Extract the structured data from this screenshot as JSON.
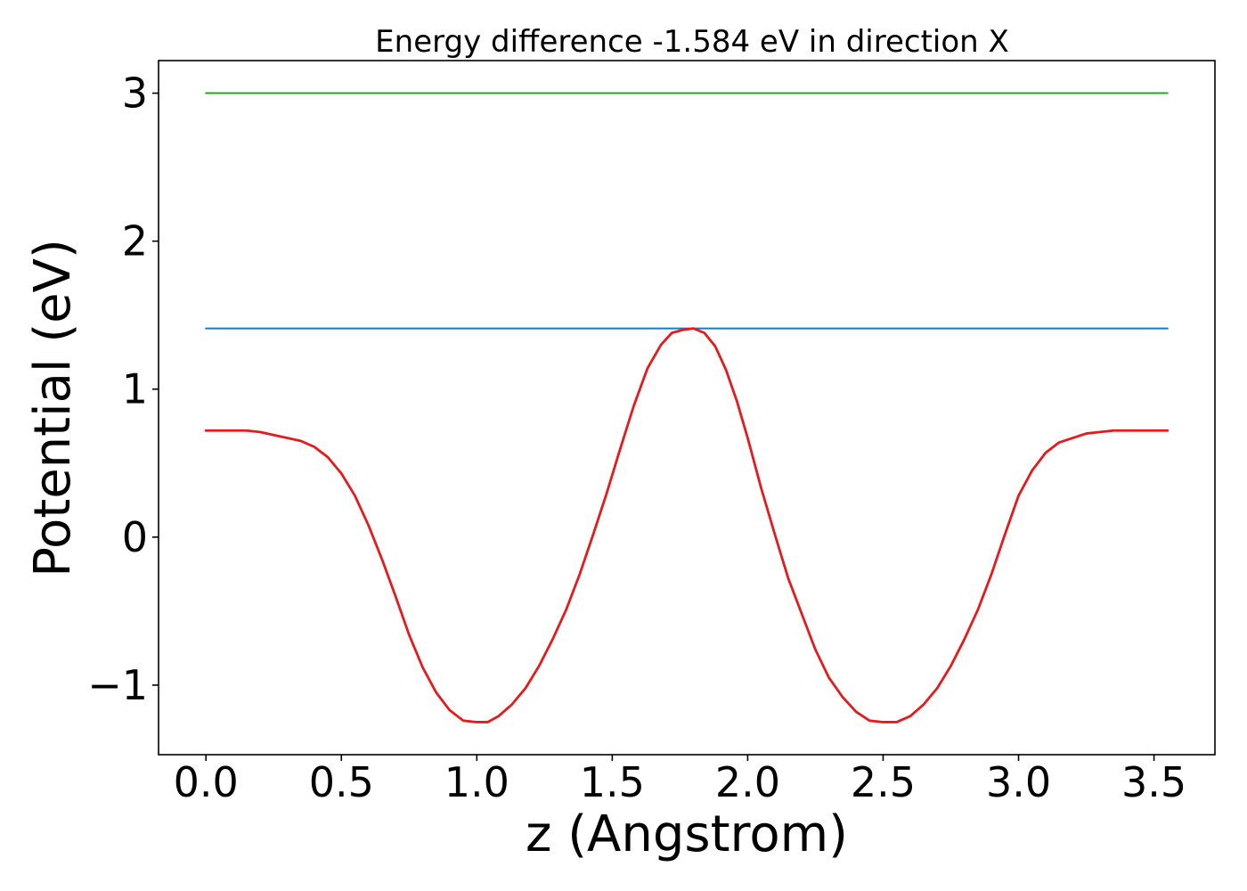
{
  "chart_data": {
    "type": "line",
    "title": "Energy difference -1.584 eV in direction X",
    "xlabel": "z (Angstrom)",
    "ylabel": "Potential (eV)",
    "xlim": [
      -0.175,
      3.725
    ],
    "ylim": [
      -1.47,
      3.22
    ],
    "xticks": [
      0.0,
      0.5,
      1.0,
      1.5,
      2.0,
      2.5,
      3.0,
      3.5
    ],
    "xtick_labels": [
      "0.0",
      "0.5",
      "1.0",
      "1.5",
      "2.0",
      "2.5",
      "3.0",
      "3.5"
    ],
    "yticks": [
      -1,
      0,
      1,
      2,
      3
    ],
    "ytick_labels": [
      "−1",
      "0",
      "1",
      "2",
      "3"
    ],
    "grid": false,
    "series": [
      {
        "color": "#2ca02c",
        "x": [
          0.0,
          3.55
        ],
        "y": [
          3.0,
          3.0
        ]
      },
      {
        "color": "#1f77b4",
        "x": [
          0.0,
          3.55
        ],
        "y": [
          1.41,
          1.41
        ]
      },
      {
        "color": "#e41a1c",
        "x": [
          0.0,
          0.05,
          0.1,
          0.15,
          0.2,
          0.25,
          0.3,
          0.35,
          0.4,
          0.45,
          0.5,
          0.55,
          0.6,
          0.65,
          0.7,
          0.75,
          0.8,
          0.85,
          0.9,
          0.95,
          1.0,
          1.04,
          1.08,
          1.13,
          1.18,
          1.23,
          1.28,
          1.33,
          1.38,
          1.43,
          1.48,
          1.53,
          1.58,
          1.63,
          1.68,
          1.72,
          1.76,
          1.8,
          1.84,
          1.88,
          1.92,
          1.96,
          2.0,
          2.05,
          2.1,
          2.15,
          2.2,
          2.25,
          2.3,
          2.35,
          2.4,
          2.45,
          2.5,
          2.55,
          2.6,
          2.65,
          2.7,
          2.75,
          2.8,
          2.85,
          2.9,
          2.95,
          3.0,
          3.05,
          3.1,
          3.15,
          3.2,
          3.25,
          3.3,
          3.35,
          3.4,
          3.45,
          3.5,
          3.55
        ],
        "y": [
          0.72,
          0.72,
          0.72,
          0.72,
          0.71,
          0.69,
          0.67,
          0.65,
          0.61,
          0.54,
          0.43,
          0.28,
          0.08,
          -0.15,
          -0.4,
          -0.66,
          -0.88,
          -1.05,
          -1.17,
          -1.24,
          -1.25,
          -1.25,
          -1.21,
          -1.13,
          -1.02,
          -0.87,
          -0.69,
          -0.49,
          -0.25,
          0.02,
          0.3,
          0.6,
          0.89,
          1.14,
          1.3,
          1.38,
          1.4,
          1.41,
          1.38,
          1.29,
          1.13,
          0.92,
          0.67,
          0.33,
          0.02,
          -0.28,
          -0.52,
          -0.76,
          -0.95,
          -1.08,
          -1.18,
          -1.24,
          -1.25,
          -1.25,
          -1.21,
          -1.13,
          -1.02,
          -0.87,
          -0.69,
          -0.49,
          -0.25,
          0.02,
          0.28,
          0.45,
          0.57,
          0.64,
          0.67,
          0.7,
          0.71,
          0.72,
          0.72,
          0.72,
          0.72,
          0.72
        ]
      }
    ]
  }
}
